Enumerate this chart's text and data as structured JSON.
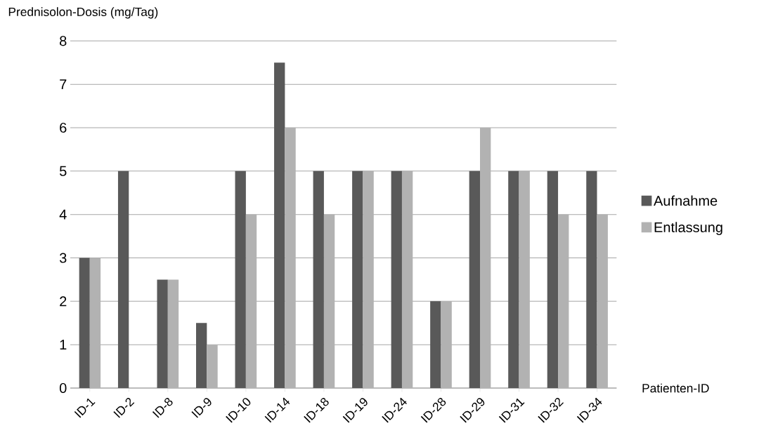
{
  "chart_data": {
    "type": "bar",
    "ylabel": "Prednisolon-Dosis (mg/Tag)",
    "xlabel": "Patienten-ID",
    "categories": [
      "ID-1",
      "ID-2",
      "ID-8",
      "ID-9",
      "ID-10",
      "ID-14",
      "ID-18",
      "ID-19",
      "ID-24",
      "ID-28",
      "ID-29",
      "ID-31",
      "ID-32",
      "ID-34"
    ],
    "series": [
      {
        "name": "Aufnahme",
        "color": "#595959",
        "values": [
          3,
          5,
          2.5,
          1.5,
          5,
          7.5,
          5,
          5,
          5,
          2,
          5,
          5,
          5,
          5
        ]
      },
      {
        "name": "Entlassung",
        "color": "#b2b2b2",
        "values": [
          3,
          null,
          2.5,
          1,
          4,
          6,
          4,
          5,
          5,
          2,
          6,
          5,
          4,
          4
        ]
      }
    ],
    "ylim": [
      0,
      8
    ],
    "yticks": [
      0,
      1,
      2,
      3,
      4,
      5,
      6,
      7,
      8
    ],
    "grid": "y",
    "legend": "right"
  }
}
